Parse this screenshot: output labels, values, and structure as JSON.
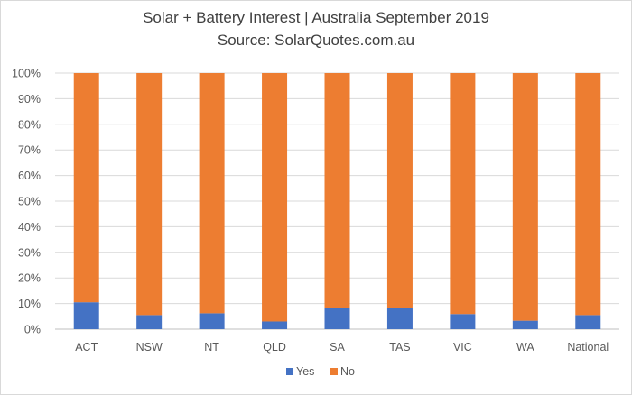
{
  "chart_data": {
    "type": "bar",
    "stacked": true,
    "percent_stacked": true,
    "title": "Solar + Battery Interest  | Australia September 2019",
    "subtitle": "Source: SolarQuotes.com.au",
    "categories": [
      "ACT",
      "NSW",
      "NT",
      "QLD",
      "SA",
      "TAS",
      "VIC",
      "WA",
      "National"
    ],
    "series": [
      {
        "name": "Yes",
        "color": "#4472C4",
        "values": [
          10.5,
          5.5,
          6.2,
          3.0,
          8.3,
          8.3,
          5.9,
          3.3,
          5.5
        ]
      },
      {
        "name": "No",
        "color": "#ED7D31",
        "values": [
          89.5,
          94.5,
          93.8,
          97.0,
          91.7,
          91.7,
          94.1,
          96.7,
          94.5
        ]
      }
    ],
    "ylim": [
      0,
      100
    ],
    "yticks": [
      "0%",
      "10%",
      "20%",
      "30%",
      "40%",
      "50%",
      "60%",
      "70%",
      "80%",
      "90%",
      "100%"
    ],
    "grid": true,
    "legend_position": "bottom"
  }
}
